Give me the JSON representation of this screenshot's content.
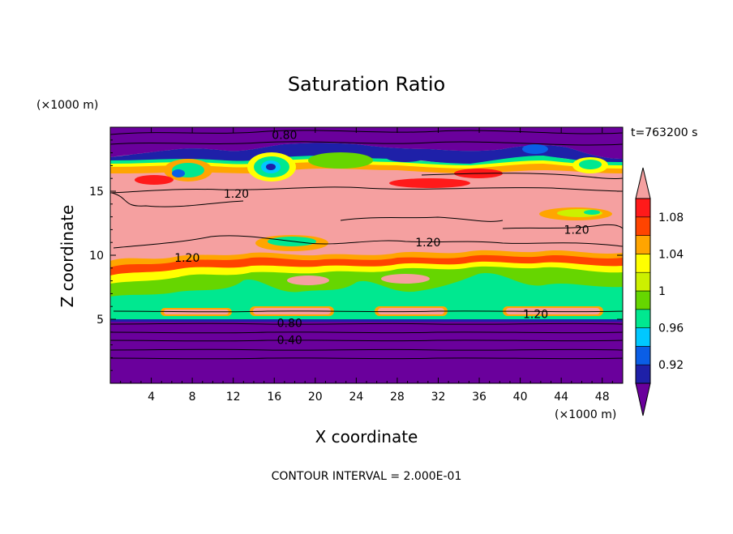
{
  "chart_data": {
    "type": "heatmap",
    "title": "Saturation Ratio",
    "time_label": "t=763200 s",
    "xlabel": "X coordinate",
    "ylabel": "Z coordinate",
    "x_unit": "(×1000 m)",
    "y_unit": "(×1000 m)",
    "footer": "CONTOUR INTERVAL = 2.000E-01",
    "xlim": [
      0,
      50
    ],
    "ylim": [
      0,
      20
    ],
    "x_ticks": [
      4,
      8,
      12,
      16,
      20,
      24,
      28,
      32,
      36,
      40,
      44,
      48
    ],
    "y_ticks": [
      5,
      10,
      15
    ],
    "colorbar": {
      "levels": [
        0.9,
        0.92,
        0.94,
        0.96,
        0.98,
        1.0,
        1.02,
        1.04,
        1.06,
        1.08,
        1.1
      ],
      "colors": [
        "#6a009c",
        "#1e20a8",
        "#0a5ee6",
        "#00c8ff",
        "#00e890",
        "#66d600",
        "#ccf000",
        "#ffff00",
        "#ffa500",
        "#ff4400",
        "#ff1a1a",
        "#f5a0a0"
      ],
      "tick_values": [
        0.92,
        0.96,
        1.0,
        1.04,
        1.08
      ],
      "tick_labels": [
        "0.92",
        "0.96",
        "1",
        "1.04",
        "1.08"
      ]
    },
    "contour_labels": [
      {
        "text": "0.80",
        "x": 17,
        "z": 19.4
      },
      {
        "text": "1.20",
        "x": 12.3,
        "z": 14.8
      },
      {
        "text": "1.20",
        "x": 45.5,
        "z": 12.0
      },
      {
        "text": "1.20",
        "x": 31,
        "z": 11.0
      },
      {
        "text": "1.20",
        "x": 7.5,
        "z": 9.8
      },
      {
        "text": "1.20",
        "x": 41.5,
        "z": 5.4
      },
      {
        "text": "0.80",
        "x": 17.5,
        "z": 4.7
      },
      {
        "text": "0.40",
        "x": 17.5,
        "z": 3.4
      }
    ]
  }
}
